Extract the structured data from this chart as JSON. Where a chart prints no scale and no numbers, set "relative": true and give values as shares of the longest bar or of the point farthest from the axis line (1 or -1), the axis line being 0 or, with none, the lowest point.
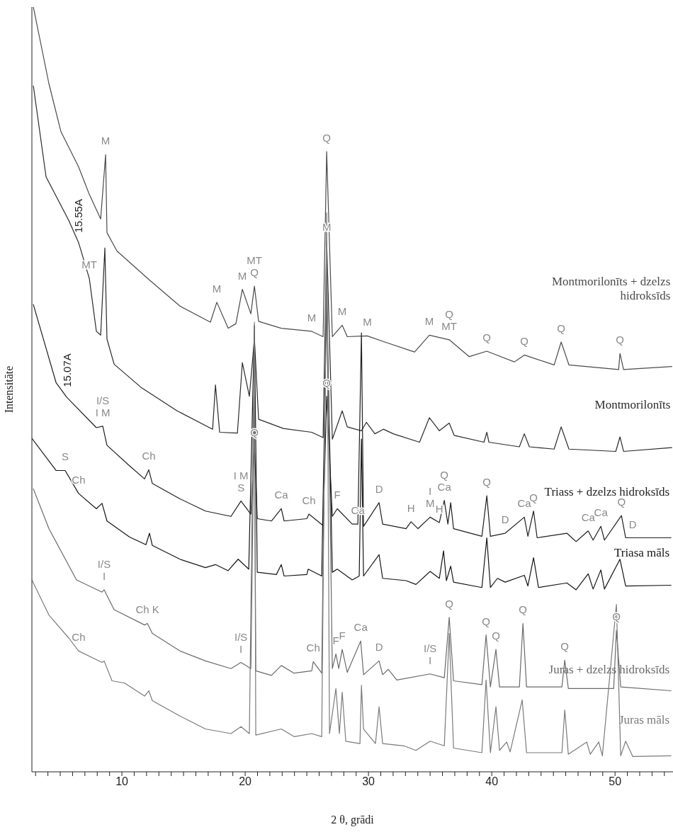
{
  "chart_data": {
    "type": "line",
    "relative": true,
    "xlabel": "2 θ, grādi",
    "ylabel": "Intensitāte",
    "xlim": [
      2.7,
      54.7
    ],
    "xticks": [
      {
        "value": 3,
        "label": null
      },
      {
        "value": 4,
        "label": null
      },
      {
        "value": 5,
        "label": null
      },
      {
        "value": 6,
        "label": null
      },
      {
        "value": 7,
        "label": null
      },
      {
        "value": 8,
        "label": null
      },
      {
        "value": 9,
        "label": null
      },
      10,
      {
        "value": 11,
        "label": null
      },
      {
        "value": 12,
        "label": null
      },
      {
        "value": 13,
        "label": null
      },
      {
        "value": 14,
        "label": null
      },
      {
        "value": 15,
        "label": null
      },
      {
        "value": 16,
        "label": null
      },
      {
        "value": 17,
        "label": null
      },
      {
        "value": 18,
        "label": null
      },
      {
        "value": 19,
        "label": null
      },
      20,
      {
        "value": 21,
        "label": null
      },
      {
        "value": 22,
        "label": null
      },
      {
        "value": 23,
        "label": null
      },
      {
        "value": 24,
        "label": null
      },
      {
        "value": 25,
        "label": null
      },
      {
        "value": 26,
        "label": null
      },
      {
        "value": 27,
        "label": null
      },
      {
        "value": 28,
        "label": null
      },
      {
        "value": 29,
        "label": null
      },
      30,
      {
        "value": 31,
        "label": null
      },
      {
        "value": 32,
        "label": null
      },
      {
        "value": 33,
        "label": null
      },
      {
        "value": 34,
        "label": null
      },
      {
        "value": 35,
        "label": null
      },
      {
        "value": 36,
        "label": null
      },
      {
        "value": 37,
        "label": null
      },
      {
        "value": 38,
        "label": null
      },
      {
        "value": 39,
        "label": null
      },
      40,
      {
        "value": 41,
        "label": null
      },
      {
        "value": 42,
        "label": null
      },
      {
        "value": 43,
        "label": null
      },
      {
        "value": 44,
        "label": null
      },
      {
        "value": 45,
        "label": null
      },
      {
        "value": 46,
        "label": null
      },
      {
        "value": 47,
        "label": null
      },
      {
        "value": 48,
        "label": null
      },
      {
        "value": 49,
        "label": null
      },
      50,
      {
        "value": 51,
        "label": null
      },
      {
        "value": 52,
        "label": null
      },
      {
        "value": 53,
        "label": null
      },
      {
        "value": 54,
        "label": null
      }
    ],
    "series": [
      {
        "name": "Montmorilonīts + dzelzs hidroksīds",
        "color": "#4a4a4a",
        "x": [
          2.82,
          4.08,
          5.06,
          6.49,
          7.36,
          8.28,
          8.68,
          8.79,
          9.6,
          12.24,
          14.71,
          17.18,
          17.7,
          18.62,
          19.25,
          19.77,
          20.46,
          20.75,
          21.09,
          22.93,
          25.4,
          26.32,
          26.61,
          27.07,
          27.87,
          28.28,
          29.9,
          31.32,
          33.74,
          34.94,
          36.55,
          38.16,
          39.6,
          41.84,
          42.64,
          45.06,
          45.63,
          46.26,
          50.29,
          50.4,
          50.69,
          54.6
        ],
        "values": [
          1.0,
          0.9,
          0.837,
          0.791,
          0.755,
          0.723,
          0.807,
          0.705,
          0.681,
          0.643,
          0.609,
          0.588,
          0.614,
          0.58,
          0.586,
          0.631,
          0.599,
          0.635,
          0.589,
          0.58,
          0.576,
          0.569,
          0.811,
          0.569,
          0.584,
          0.569,
          0.57,
          0.562,
          0.549,
          0.571,
          0.565,
          0.543,
          0.55,
          0.536,
          0.545,
          0.532,
          0.562,
          0.532,
          0.526,
          0.547,
          0.526,
          0.53
        ]
      },
      {
        "name": "Montmorilonīts",
        "color": "#2a2a2a",
        "x": [
          2.82,
          3.85,
          5.69,
          6.49,
          7.36,
          7.93,
          8.28,
          8.62,
          8.79,
          9.37,
          11.61,
          14.48,
          17.36,
          17.59,
          17.93,
          19.37,
          19.77,
          20.34,
          20.75,
          21.09,
          23.1,
          25.4,
          26.32,
          26.61,
          27.07,
          27.87,
          28.28,
          29.43,
          29.83,
          30.52,
          31.21,
          32.01,
          34.14,
          34.94,
          35.75,
          36.55,
          36.95,
          39.37,
          39.6,
          39.77,
          42.24,
          42.64,
          43.05,
          45.06,
          45.63,
          46.26,
          50.06,
          50.4,
          50.69,
          54.6
        ],
        "values": [
          0.897,
          0.778,
          0.721,
          0.692,
          0.645,
          0.576,
          0.571,
          0.685,
          0.566,
          0.533,
          0.502,
          0.472,
          0.448,
          0.506,
          0.444,
          0.443,
          0.535,
          0.491,
          0.566,
          0.461,
          0.449,
          0.444,
          0.437,
          0.694,
          0.435,
          0.472,
          0.451,
          0.446,
          0.457,
          0.442,
          0.448,
          0.442,
          0.431,
          0.463,
          0.446,
          0.456,
          0.44,
          0.431,
          0.444,
          0.431,
          0.425,
          0.442,
          0.425,
          0.422,
          0.451,
          0.422,
          0.419,
          0.438,
          0.419,
          0.424
        ]
      },
      {
        "name": "Triass + dzelzs hidroksīds",
        "color": "#1e1e1e",
        "x": [
          2.82,
          4.66,
          5.52,
          7.93,
          8.45,
          8.79,
          10.63,
          11.84,
          12.18,
          12.47,
          14.71,
          16.78,
          18.85,
          19.66,
          20.46,
          20.75,
          20.98,
          22.13,
          22.93,
          23.16,
          25.0,
          25.17,
          26.32,
          26.61,
          27.07,
          27.47,
          28.68,
          29.14,
          29.43,
          29.6,
          30.86,
          31.15,
          33.05,
          33.45,
          34.02,
          35.0,
          35.75,
          36.15,
          36.44,
          36.67,
          36.9,
          39.2,
          39.6,
          39.89,
          41.09,
          42.64,
          42.93,
          43.39,
          43.68,
          46.09,
          46.84,
          47.82,
          48.22,
          48.85,
          49.14,
          50.52,
          50.86,
          51.44,
          54.54
        ],
        "values": [
          0.611,
          0.509,
          0.49,
          0.45,
          0.452,
          0.427,
          0.4,
          0.383,
          0.395,
          0.377,
          0.357,
          0.341,
          0.334,
          0.354,
          0.337,
          0.426,
          0.331,
          0.328,
          0.344,
          0.328,
          0.331,
          0.337,
          0.322,
          0.491,
          0.334,
          0.344,
          0.324,
          0.324,
          0.574,
          0.321,
          0.352,
          0.324,
          0.318,
          0.327,
          0.318,
          0.333,
          0.326,
          0.355,
          0.324,
          0.352,
          0.318,
          0.308,
          0.361,
          0.308,
          0.312,
          0.333,
          0.308,
          0.341,
          0.306,
          0.312,
          0.301,
          0.315,
          0.303,
          0.321,
          0.303,
          0.335,
          0.306,
          0.306,
          0.306
        ]
      },
      {
        "name": "Triasa māls",
        "color": "#141414",
        "x": [
          2.7,
          4.66,
          5.4,
          6.49,
          7.93,
          8.39,
          8.79,
          10.63,
          11.95,
          12.24,
          12.47,
          14.71,
          16.78,
          17.59,
          18.62,
          19.43,
          20.29,
          20.75,
          20.98,
          22.53,
          22.93,
          23.16,
          25.0,
          25.11,
          26.21,
          26.61,
          27.07,
          27.47,
          28.68,
          29.25,
          29.43,
          29.6,
          30.86,
          31.15,
          33.05,
          33.85,
          35.0,
          35.75,
          36.09,
          36.32,
          36.67,
          36.9,
          39.2,
          39.6,
          39.89,
          40.46,
          41.09,
          42.64,
          42.93,
          43.39,
          43.79,
          46.09,
          46.84,
          47.82,
          48.22,
          48.85,
          49.14,
          50.4,
          50.86,
          54.54
        ],
        "values": [
          0.436,
          0.394,
          0.394,
          0.364,
          0.344,
          0.351,
          0.328,
          0.307,
          0.297,
          0.312,
          0.296,
          0.278,
          0.267,
          0.271,
          0.263,
          0.278,
          0.265,
          0.584,
          0.261,
          0.258,
          0.271,
          0.256,
          0.258,
          0.265,
          0.256,
          0.62,
          0.261,
          0.265,
          0.251,
          0.256,
          0.435,
          0.256,
          0.284,
          0.253,
          0.25,
          0.245,
          0.262,
          0.253,
          0.289,
          0.25,
          0.269,
          0.248,
          0.241,
          0.306,
          0.241,
          0.253,
          0.248,
          0.257,
          0.243,
          0.28,
          0.241,
          0.247,
          0.238,
          0.259,
          0.239,
          0.264,
          0.239,
          0.278,
          0.243,
          0.244
        ]
      },
      {
        "name": "Juras + dzelzs hidroksīds",
        "color": "#6a6a6a",
        "x": [
          2.82,
          4.08,
          6.32,
          8.39,
          8.56,
          9.37,
          11.84,
          12.07,
          12.47,
          14.71,
          16.78,
          18.85,
          19.66,
          20.46,
          20.75,
          20.86,
          22.13,
          22.93,
          23.97,
          25.4,
          25.52,
          26.21,
          26.61,
          27.07,
          27.36,
          27.59,
          27.87,
          28.28,
          29.37,
          29.6,
          30.86,
          31.15,
          31.61,
          32.3,
          35.0,
          36.15,
          36.55,
          36.9,
          39.2,
          39.54,
          39.89,
          40.34,
          40.63,
          42.24,
          42.53,
          42.82,
          45.69,
          45.92,
          46.21,
          49.89,
          50.11,
          50.46,
          54.54
        ],
        "values": [
          0.37,
          0.318,
          0.251,
          0.235,
          0.238,
          0.212,
          0.192,
          0.194,
          0.181,
          0.158,
          0.145,
          0.135,
          0.143,
          0.135,
          0.491,
          0.132,
          0.126,
          0.139,
          0.129,
          0.132,
          0.144,
          0.129,
          0.657,
          0.135,
          0.154,
          0.135,
          0.16,
          0.13,
          0.171,
          0.127,
          0.145,
          0.127,
          0.134,
          0.12,
          0.128,
          0.123,
          0.202,
          0.119,
          0.114,
          0.179,
          0.111,
          0.16,
          0.111,
          0.111,
          0.194,
          0.111,
          0.111,
          0.146,
          0.109,
          0.109,
          0.185,
          0.111,
          0.106
        ]
      },
      {
        "name": "Juras māls",
        "color": "#7a7a7a",
        "x": [
          2.7,
          4.08,
          5.69,
          6.49,
          8.39,
          8.56,
          9.2,
          10.23,
          11.84,
          12.18,
          12.47,
          14.71,
          16.78,
          18.85,
          19.66,
          20.34,
          20.75,
          20.86,
          22.93,
          23.97,
          25.4,
          26.21,
          26.61,
          26.84,
          27.36,
          27.64,
          27.87,
          28.16,
          29.31,
          29.43,
          29.6,
          30.57,
          30.86,
          31.15,
          32.87,
          33.85,
          35.0,
          36.15,
          36.55,
          36.9,
          39.2,
          39.54,
          39.89,
          40.34,
          40.63,
          41.21,
          41.49,
          42.47,
          42.82,
          45.69,
          45.92,
          46.21,
          47.7,
          47.99,
          48.68,
          48.97,
          50.11,
          50.46,
          50.86,
          51.44,
          54.54
        ],
        "values": [
          0.251,
          0.205,
          0.175,
          0.158,
          0.143,
          0.145,
          0.119,
          0.116,
          0.099,
          0.106,
          0.093,
          0.073,
          0.056,
          0.05,
          0.059,
          0.05,
          0.588,
          0.048,
          0.056,
          0.046,
          0.05,
          0.046,
          0.731,
          0.05,
          0.109,
          0.05,
          0.104,
          0.04,
          0.037,
          0.113,
          0.056,
          0.037,
          0.085,
          0.037,
          0.034,
          0.028,
          0.04,
          0.034,
          0.181,
          0.031,
          0.025,
          0.12,
          0.025,
          0.085,
          0.028,
          0.039,
          0.026,
          0.094,
          0.025,
          0.025,
          0.081,
          0.023,
          0.039,
          0.023,
          0.039,
          0.021,
          0.219,
          0.021,
          0.04,
          0.02,
          0.021
        ]
      }
    ],
    "annotations": [
      {
        "text": "M",
        "x": 8.68,
        "y": 0.807
      },
      {
        "text": "15.55A",
        "x": 6.49,
        "y": 0.692
      },
      {
        "text": "MT",
        "x": 7.36,
        "y": 0.645
      },
      {
        "text": "M",
        "x": 17.7,
        "y": 0.614
      },
      {
        "text": "M",
        "x": 19.77,
        "y": 0.631
      },
      {
        "text": "Q",
        "x": 20.75,
        "y": 0.635
      },
      {
        "text": "MT",
        "x": 20.75,
        "y": 0.635
      },
      {
        "text": "Q",
        "x": 26.61,
        "y": 0.811
      },
      {
        "text": "M",
        "x": 26.61,
        "y": 0.694
      },
      {
        "text": "M",
        "x": 25.4,
        "y": 0.576
      },
      {
        "text": "M",
        "x": 27.87,
        "y": 0.584
      },
      {
        "text": "M",
        "x": 29.9,
        "y": 0.57
      },
      {
        "text": "M",
        "x": 34.94,
        "y": 0.571
      },
      {
        "text": "MT",
        "x": 36.55,
        "y": 0.565
      },
      {
        "text": "Q",
        "x": 36.55,
        "y": 0.565
      },
      {
        "text": "Q",
        "x": 39.6,
        "y": 0.55
      },
      {
        "text": "Q",
        "x": 42.64,
        "y": 0.545
      },
      {
        "text": "Q",
        "x": 45.63,
        "y": 0.562
      },
      {
        "text": "Q",
        "x": 50.4,
        "y": 0.547
      },
      {
        "text": "I M",
        "x": 8.45,
        "y": 0.452
      },
      {
        "text": "I/S",
        "x": 8.45,
        "y": 0.452
      },
      {
        "text": "15.07A",
        "x": 5.52,
        "y": 0.49
      },
      {
        "text": "S",
        "x": 5.4,
        "y": 0.394
      },
      {
        "text": "Ch",
        "x": 6.49,
        "y": 0.364
      },
      {
        "text": "Ch",
        "x": 12.18,
        "y": 0.395
      },
      {
        "text": "Q",
        "x": 20.75,
        "y": 0.426
      },
      {
        "text": "S",
        "x": 19.66,
        "y": 0.354
      },
      {
        "text": "I M",
        "x": 19.66,
        "y": 0.354
      },
      {
        "text": "Ca",
        "x": 22.93,
        "y": 0.344
      },
      {
        "text": "Ch",
        "x": 25.17,
        "y": 0.337
      },
      {
        "text": "Q",
        "x": 26.61,
        "y": 0.491
      },
      {
        "text": "F",
        "x": 27.47,
        "y": 0.344
      },
      {
        "text": "Ca",
        "x": 29.14,
        "y": 0.324
      },
      {
        "text": "D",
        "x": 30.86,
        "y": 0.352
      },
      {
        "text": "H",
        "x": 33.45,
        "y": 0.327
      },
      {
        "text": "M",
        "x": 35.0,
        "y": 0.333
      },
      {
        "text": "I",
        "x": 35.0,
        "y": 0.333
      },
      {
        "text": "H",
        "x": 35.75,
        "y": 0.326
      },
      {
        "text": "Ca",
        "x": 36.15,
        "y": 0.355
      },
      {
        "text": "Q",
        "x": 36.15,
        "y": 0.355
      },
      {
        "text": "Q",
        "x": 39.6,
        "y": 0.361
      },
      {
        "text": "D",
        "x": 41.09,
        "y": 0.312
      },
      {
        "text": "Ca",
        "x": 42.64,
        "y": 0.333
      },
      {
        "text": "Q",
        "x": 43.39,
        "y": 0.341
      },
      {
        "text": "Ca",
        "x": 47.82,
        "y": 0.315
      },
      {
        "text": "Ca",
        "x": 48.85,
        "y": 0.321
      },
      {
        "text": "Q",
        "x": 50.52,
        "y": 0.335
      },
      {
        "text": "D",
        "x": 51.44,
        "y": 0.306
      },
      {
        "text": "I",
        "x": 8.56,
        "y": 0.238
      },
      {
        "text": "I/S",
        "x": 8.56,
        "y": 0.238
      },
      {
        "text": "Ch K",
        "x": 12.07,
        "y": 0.194
      },
      {
        "text": "Ch",
        "x": 6.49,
        "y": 0.158
      },
      {
        "text": "I",
        "x": 19.66,
        "y": 0.143
      },
      {
        "text": "I/S",
        "x": 19.66,
        "y": 0.143
      },
      {
        "text": "Ch",
        "x": 25.52,
        "y": 0.144
      },
      {
        "text": "F",
        "x": 27.36,
        "y": 0.154
      },
      {
        "text": "F",
        "x": 27.87,
        "y": 0.16
      },
      {
        "text": "Ca",
        "x": 29.37,
        "y": 0.171
      },
      {
        "text": "D",
        "x": 30.86,
        "y": 0.145
      },
      {
        "text": "I",
        "x": 35.0,
        "y": 0.128
      },
      {
        "text": "I/S",
        "x": 35.0,
        "y": 0.128
      },
      {
        "text": "Q",
        "x": 36.55,
        "y": 0.202
      },
      {
        "text": "Q",
        "x": 39.54,
        "y": 0.179
      },
      {
        "text": "Q",
        "x": 40.34,
        "y": 0.16
      },
      {
        "text": "Q",
        "x": 42.53,
        "y": 0.194
      },
      {
        "text": "Q",
        "x": 45.92,
        "y": 0.146
      },
      {
        "text": "Q",
        "x": 50.11,
        "y": 0.185
      }
    ]
  }
}
